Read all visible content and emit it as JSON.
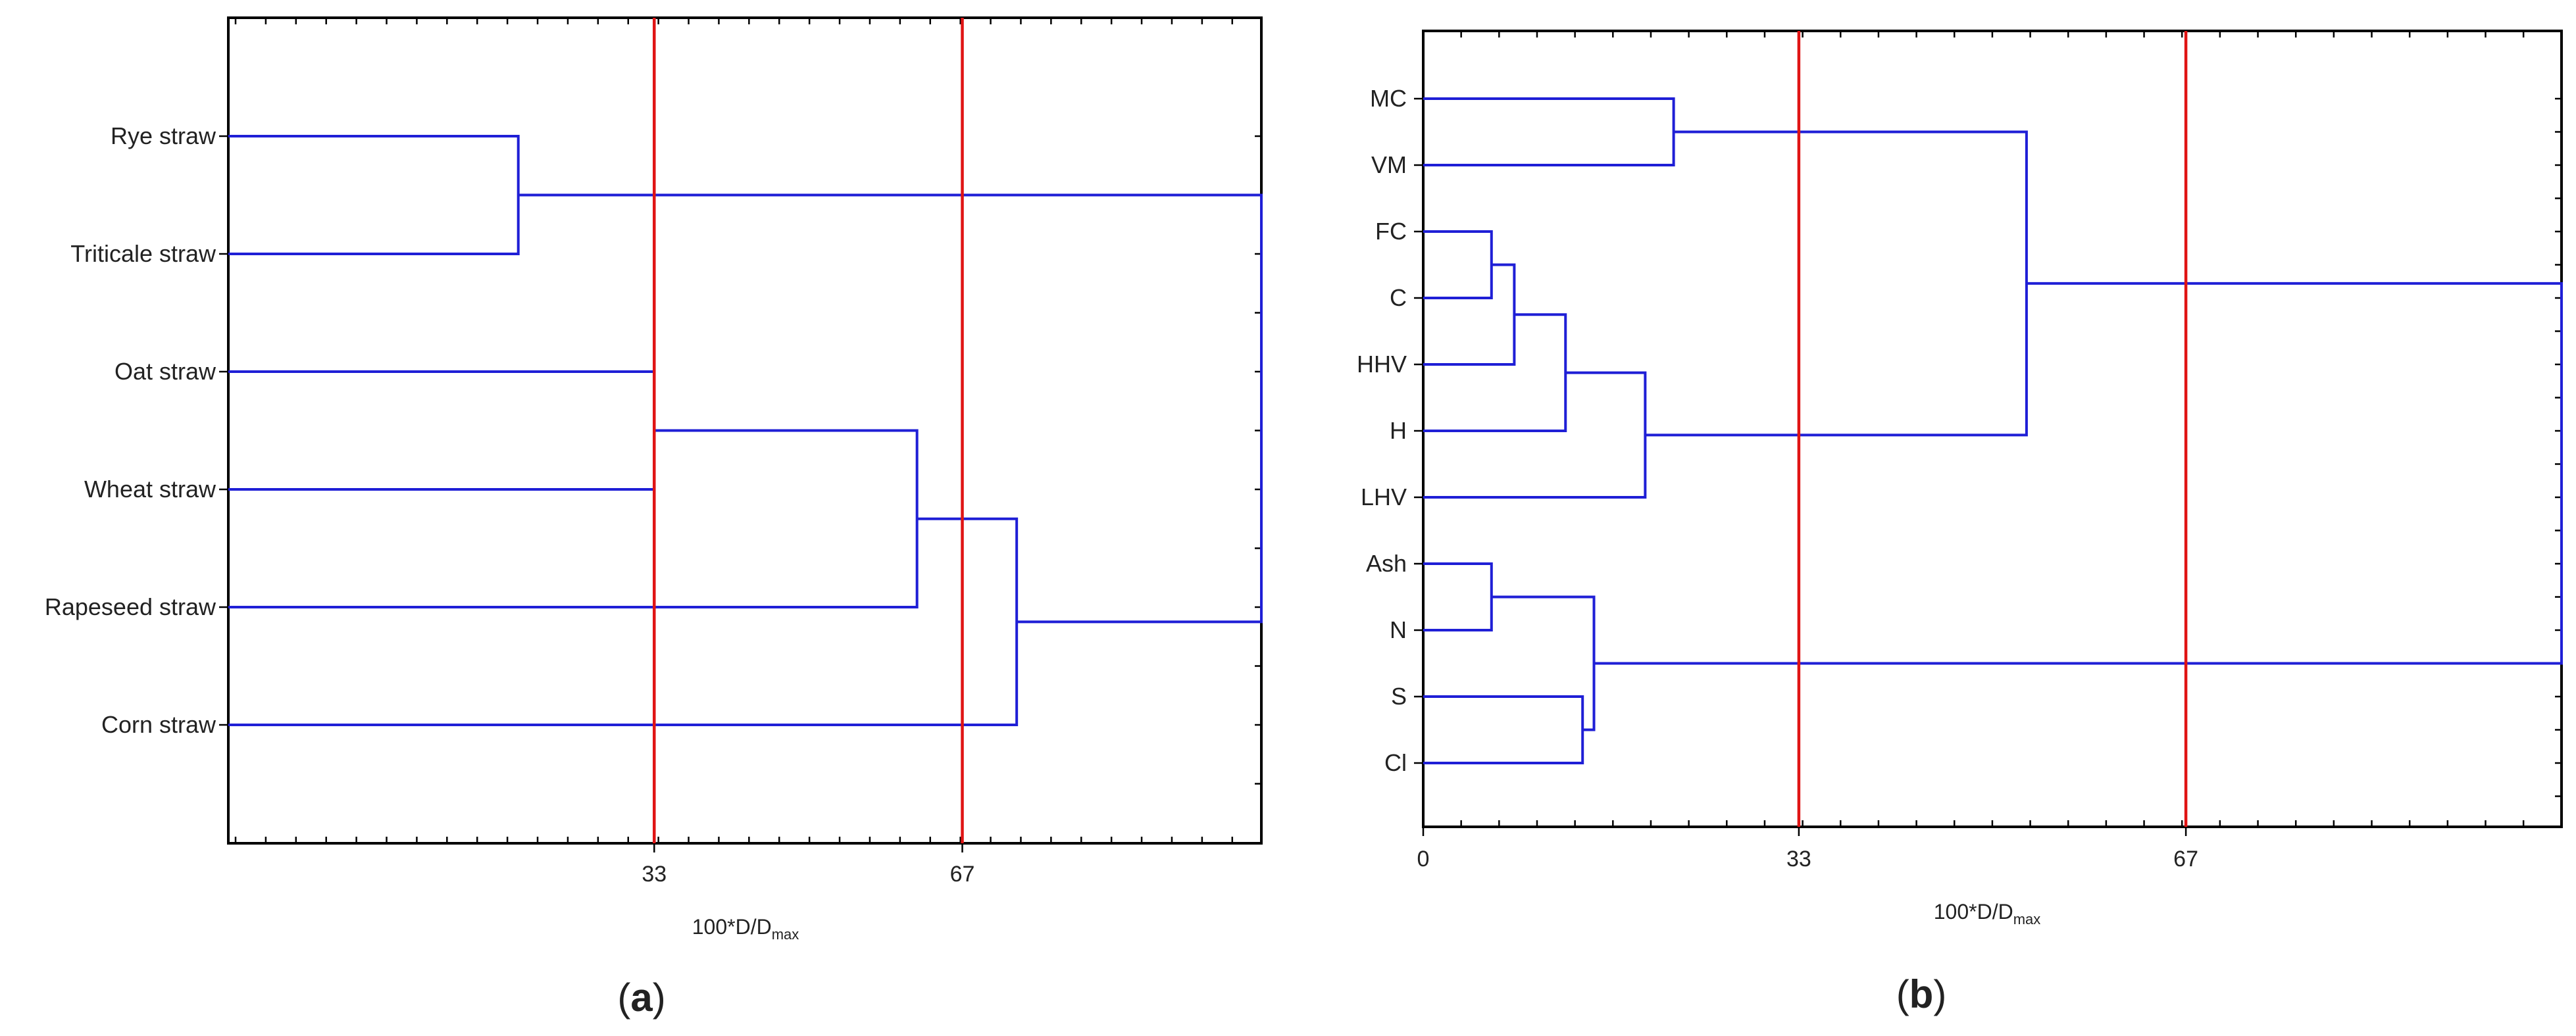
{
  "colors": {
    "link": "#1f1fd6",
    "cut_line": "#e01414",
    "frame": "#000000",
    "text": "#222222"
  },
  "chart_data": [
    {
      "type": "dendrogram",
      "orientation": "horizontal",
      "panel_label": "(a)",
      "caption_letter": "a",
      "xlabel_base": "100*D/D",
      "xlabel_sub": "max",
      "xlim": [
        -14,
        100
      ],
      "xticks": [
        33,
        67
      ],
      "xtick_labels": [
        "33",
        "67"
      ],
      "cut_lines": [
        33,
        67
      ],
      "leaves": [
        "Rye straw",
        "Triticale straw",
        "Oat straw",
        "Wheat straw",
        "Rapeseed straw",
        "Corn straw"
      ],
      "merges": [
        {
          "a": "L0",
          "b": "L1",
          "height": 18
        },
        {
          "a": "L2",
          "b": "L3",
          "height": 33
        },
        {
          "a": "M1",
          "b": "L4",
          "height": 62
        },
        {
          "a": "M2",
          "b": "L5",
          "height": 73
        },
        {
          "a": "M0",
          "b": "M3",
          "height": 100
        }
      ]
    },
    {
      "type": "dendrogram",
      "orientation": "horizontal",
      "panel_label": "(b)",
      "caption_letter": "b",
      "xlabel_base": "100*D/D",
      "xlabel_sub": "max",
      "xlim": [
        0,
        100
      ],
      "xticks": [
        0,
        33,
        67
      ],
      "xtick_labels": [
        "0",
        "33",
        "67"
      ],
      "cut_lines": [
        33,
        67
      ],
      "leaves": [
        "MC",
        "VM",
        "FC",
        "C",
        "HHV",
        "H",
        "LHV",
        "Ash",
        "N",
        "S",
        "Cl"
      ],
      "merges": [
        {
          "a": "L0",
          "b": "L1",
          "height": 22
        },
        {
          "a": "L2",
          "b": "L3",
          "height": 6
        },
        {
          "a": "M1",
          "b": "L4",
          "height": 8
        },
        {
          "a": "M2",
          "b": "L5",
          "height": 12.5
        },
        {
          "a": "M3",
          "b": "L6",
          "height": 19.5
        },
        {
          "a": "M0",
          "b": "M4",
          "height": 53
        },
        {
          "a": "L7",
          "b": "L8",
          "height": 6
        },
        {
          "a": "L9",
          "b": "L10",
          "height": 14
        },
        {
          "a": "M6",
          "b": "M7",
          "height": 15
        },
        {
          "a": "M5",
          "b": "M8",
          "height": 100
        }
      ]
    }
  ]
}
